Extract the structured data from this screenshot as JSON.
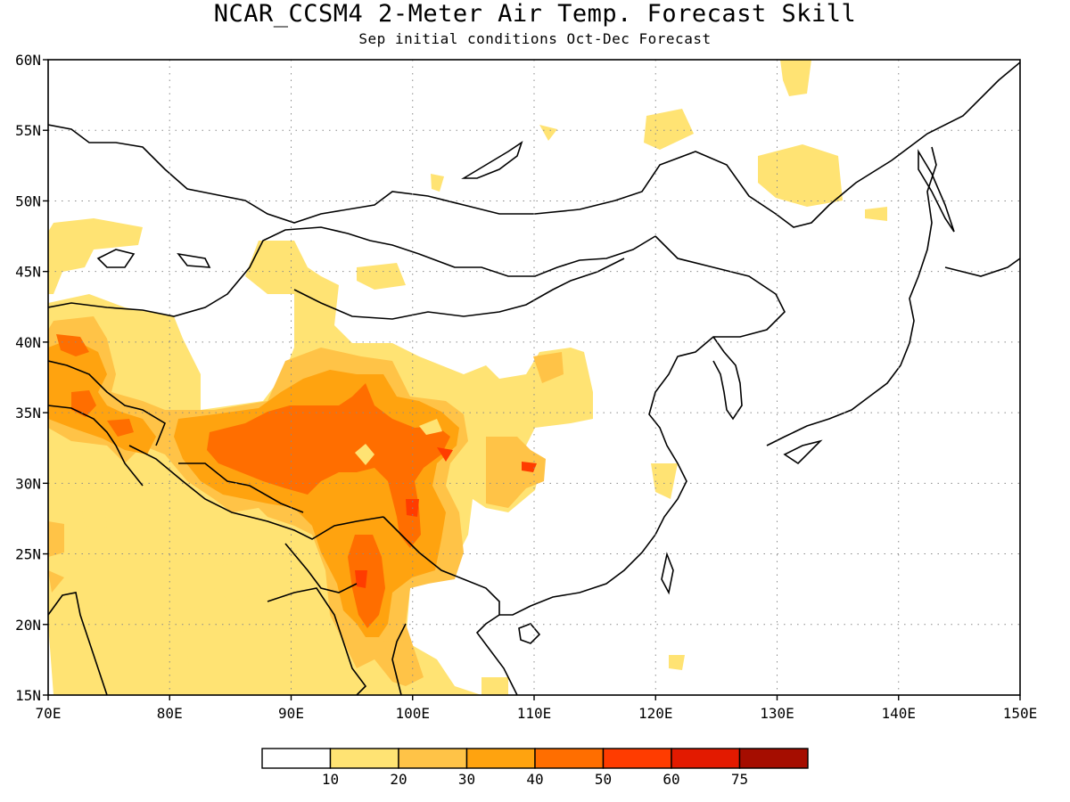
{
  "title": "NCAR_CCSM4 2-Meter Air Temp. Forecast Skill",
  "subtitle": "Sep initial conditions  Oct-Dec Forecast",
  "map": {
    "lon_range": [
      70,
      150
    ],
    "lat_range": [
      15,
      60
    ],
    "lon_ticks": [
      "70E",
      "80E",
      "90E",
      "100E",
      "110E",
      "120E",
      "130E",
      "140E",
      "150E"
    ],
    "lat_ticks": [
      "15N",
      "20N",
      "25N",
      "30N",
      "35N",
      "40N",
      "45N",
      "50N",
      "55N",
      "60N"
    ],
    "grid": "dotted"
  },
  "colorbar": {
    "colors": [
      "#ffffff",
      "#ffe373",
      "#ffc347",
      "#ffa30f",
      "#ff6e00",
      "#ff3c00",
      "#e31a00",
      "#a50d00"
    ],
    "labels": [
      "10",
      "20",
      "30",
      "40",
      "50",
      "60",
      "75"
    ]
  }
}
